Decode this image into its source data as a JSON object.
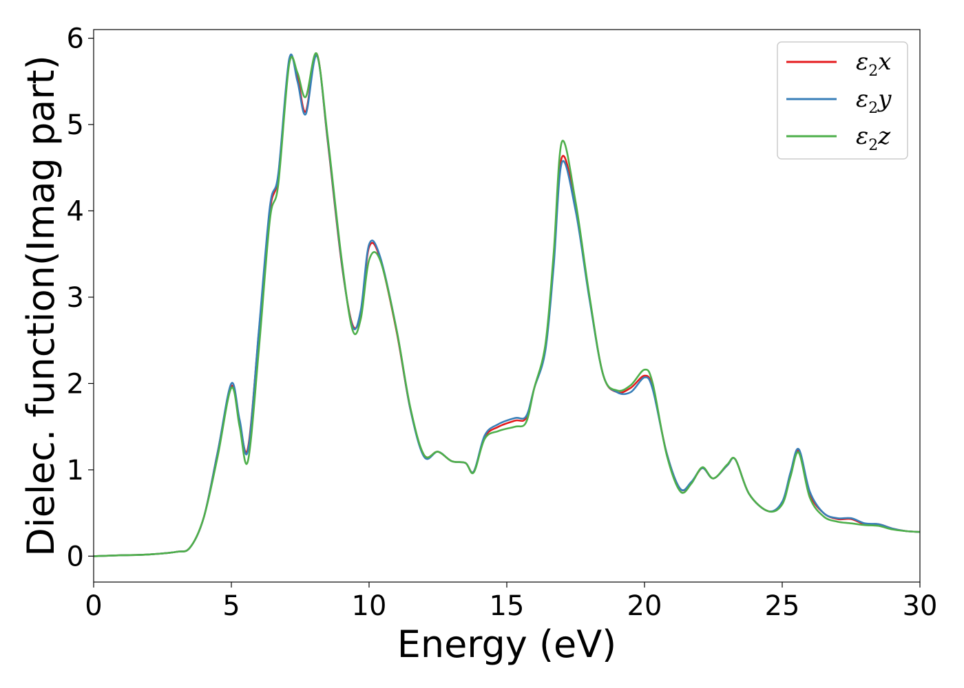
{
  "chart_data": {
    "type": "line",
    "xlabel": "Energy (eV)",
    "ylabel": "Dielec. function(Imag part)",
    "xlim": [
      0,
      30
    ],
    "ylim": [
      -0.3,
      6.1
    ],
    "xticks": [
      0,
      5,
      10,
      15,
      20,
      25,
      30
    ],
    "yticks": [
      0,
      1,
      2,
      3,
      4,
      5,
      6
    ],
    "grid": false,
    "legend": "top-right",
    "series": [
      {
        "name": "ε2x",
        "name_base": "ε",
        "name_sub": "2",
        "name_suffix": "x",
        "color": "#e41a1c",
        "x": [
          0,
          1,
          2,
          3,
          3.5,
          4,
          4.5,
          5,
          5.3,
          5.6,
          6,
          6.4,
          6.7,
          7.1,
          7.4,
          7.7,
          8.1,
          8.5,
          9,
          9.4,
          9.7,
          10,
          10.4,
          11,
          11.5,
          12,
          12.5,
          13,
          13.5,
          13.8,
          14.2,
          14.7,
          15.3,
          15.7,
          16,
          16.4,
          16.7,
          17,
          17.5,
          18,
          18.5,
          19,
          19.5,
          20,
          20.3,
          20.8,
          21.3,
          21.7,
          22.1,
          22.5,
          23,
          23.3,
          23.8,
          24.5,
          25,
          25.3,
          25.6,
          26,
          26.5,
          27,
          27.5,
          28,
          28.5,
          29,
          29.5,
          30
        ],
        "y": [
          0,
          0.01,
          0.02,
          0.05,
          0.1,
          0.45,
          1.2,
          1.97,
          1.55,
          1.25,
          2.6,
          4.0,
          4.4,
          5.72,
          5.55,
          5.15,
          5.82,
          4.8,
          3.4,
          2.68,
          2.82,
          3.58,
          3.45,
          2.6,
          1.7,
          1.17,
          1.21,
          1.1,
          1.08,
          0.98,
          1.38,
          1.5,
          1.57,
          1.6,
          1.95,
          2.4,
          3.4,
          4.62,
          4.05,
          3.0,
          2.1,
          1.9,
          1.95,
          2.09,
          1.95,
          1.2,
          0.78,
          0.85,
          1.02,
          0.9,
          1.05,
          1.12,
          0.72,
          0.52,
          0.62,
          0.95,
          1.22,
          0.72,
          0.5,
          0.43,
          0.43,
          0.37,
          0.37,
          0.32,
          0.29,
          0.28
        ]
      },
      {
        "name": "ε2y",
        "name_base": "ε",
        "name_sub": "2",
        "name_suffix": "y",
        "color": "#377eb8",
        "x": [
          0,
          1,
          2,
          3,
          3.5,
          4,
          4.5,
          5,
          5.3,
          5.6,
          6,
          6.4,
          6.7,
          7.1,
          7.4,
          7.7,
          8.1,
          8.5,
          9,
          9.4,
          9.7,
          10,
          10.4,
          11,
          11.5,
          12,
          12.5,
          13,
          13.5,
          13.8,
          14.2,
          14.7,
          15.3,
          15.7,
          16,
          16.4,
          16.7,
          17,
          17.5,
          18,
          18.5,
          19,
          19.5,
          20,
          20.3,
          20.8,
          21.3,
          21.7,
          22.1,
          22.5,
          23,
          23.3,
          23.8,
          24.5,
          25,
          25.3,
          25.6,
          26,
          26.5,
          27,
          27.5,
          28,
          28.5,
          29,
          29.5,
          30
        ],
        "y": [
          0,
          0.01,
          0.02,
          0.05,
          0.1,
          0.45,
          1.2,
          2.0,
          1.58,
          1.22,
          2.62,
          4.05,
          4.42,
          5.76,
          5.5,
          5.12,
          5.8,
          4.82,
          3.42,
          2.66,
          2.85,
          3.61,
          3.47,
          2.62,
          1.7,
          1.15,
          1.21,
          1.1,
          1.08,
          0.98,
          1.4,
          1.53,
          1.6,
          1.62,
          1.95,
          2.38,
          3.35,
          4.56,
          4.0,
          2.98,
          2.1,
          1.9,
          1.9,
          2.07,
          1.93,
          1.2,
          0.78,
          0.86,
          1.02,
          0.9,
          1.05,
          1.12,
          0.72,
          0.52,
          0.63,
          0.97,
          1.24,
          0.75,
          0.5,
          0.44,
          0.44,
          0.38,
          0.37,
          0.32,
          0.29,
          0.28
        ]
      },
      {
        "name": "ε2z",
        "name_base": "ε",
        "name_sub": "2",
        "name_suffix": "z",
        "color": "#4daf4a",
        "x": [
          0,
          1,
          2,
          3,
          3.5,
          4,
          4.5,
          5,
          5.3,
          5.6,
          6,
          6.4,
          6.7,
          7.1,
          7.4,
          7.7,
          8.1,
          8.5,
          9,
          9.4,
          9.7,
          10,
          10.4,
          11,
          11.5,
          12,
          12.5,
          13,
          13.5,
          13.8,
          14.2,
          14.7,
          15.3,
          15.7,
          16,
          16.4,
          16.7,
          17,
          17.5,
          18,
          18.5,
          19,
          19.5,
          20,
          20.3,
          20.8,
          21.3,
          21.7,
          22.1,
          22.5,
          23,
          23.3,
          23.8,
          24.5,
          25,
          25.3,
          25.6,
          26,
          26.5,
          27,
          27.5,
          28,
          28.5,
          29,
          29.5,
          30
        ],
        "y": [
          0,
          0.01,
          0.02,
          0.05,
          0.1,
          0.45,
          1.15,
          1.95,
          1.5,
          1.1,
          2.4,
          3.9,
          4.3,
          5.7,
          5.6,
          5.32,
          5.82,
          4.85,
          3.45,
          2.62,
          2.75,
          3.43,
          3.43,
          2.62,
          1.72,
          1.17,
          1.21,
          1.1,
          1.08,
          0.97,
          1.36,
          1.45,
          1.5,
          1.55,
          1.95,
          2.45,
          3.5,
          4.8,
          4.1,
          3.02,
          2.1,
          1.92,
          1.98,
          2.16,
          2.0,
          1.18,
          0.75,
          0.84,
          1.03,
          0.9,
          1.06,
          1.12,
          0.72,
          0.52,
          0.6,
          0.92,
          1.2,
          0.68,
          0.46,
          0.4,
          0.38,
          0.36,
          0.35,
          0.31,
          0.29,
          0.28
        ]
      }
    ]
  }
}
